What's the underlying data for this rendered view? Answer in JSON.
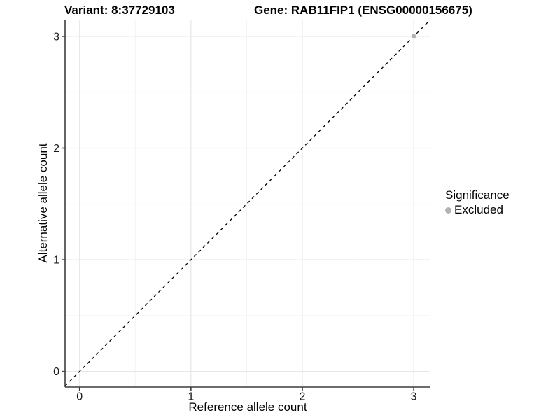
{
  "chart_data": {
    "type": "scatter",
    "title_left": "Variant: 8:37729103",
    "title_right": "Gene: RAB11FIP1 (ENSG00000156675)",
    "xlabel": "Reference allele count",
    "ylabel": "Alternative allele count",
    "x_ticks": [
      0,
      1,
      2,
      3
    ],
    "y_ticks": [
      0,
      1,
      2,
      3
    ],
    "x_minor": [
      0.5,
      1.5,
      2.5
    ],
    "y_minor": [
      0.5,
      1.5,
      2.5
    ],
    "xlim": [
      -0.13,
      3.15
    ],
    "ylim": [
      -0.14,
      3.15
    ],
    "grid": "major+minor",
    "points": [
      {
        "x": 3,
        "y": 3,
        "significance": "Excluded"
      }
    ],
    "identity_line": {
      "slope": 1,
      "intercept": 0,
      "style": "dashed",
      "color": "#000000"
    },
    "legend": {
      "title": "Significance",
      "position": "right",
      "items": [
        {
          "label": "Excluded",
          "color": "#b3b3b3"
        }
      ]
    },
    "colors": {
      "point_excluded": "#b3b3b3",
      "grid_major": "#e7e7e7",
      "grid_minor": "#f3f3f3",
      "axis_line": "#3d3d3d",
      "tick_mark": "#3d3d3d",
      "tick_text": "#1a1a1a",
      "background": "#ffffff"
    }
  }
}
